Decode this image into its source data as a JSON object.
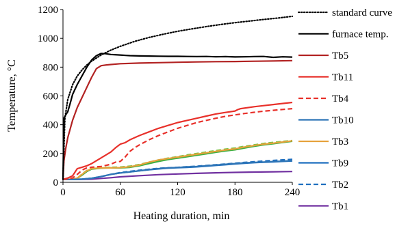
{
  "chart_data": {
    "type": "line",
    "xlabel": "Heating duration, min",
    "ylabel": "Temperature, °C",
    "xlim": [
      0,
      240
    ],
    "ylim": [
      0,
      1200
    ],
    "xticks": [
      0,
      60,
      120,
      180,
      240
    ],
    "yticks": [
      0,
      200,
      400,
      600,
      800,
      1000,
      1200
    ],
    "grid": false,
    "legend_position": "right",
    "series": [
      {
        "name": "standard curve",
        "color": "#000000",
        "style": "dotted",
        "x": [
          0,
          2,
          5,
          10,
          15,
          20,
          25,
          30,
          40,
          50,
          60,
          75,
          90,
          105,
          120,
          135,
          150,
          165,
          180,
          195,
          210,
          225,
          240
        ],
        "y": [
          20,
          445,
          576,
          678,
          739,
          781,
          815,
          842,
          885,
          918,
          945,
          979,
          1006,
          1029,
          1049,
          1066,
          1082,
          1096,
          1109,
          1120,
          1131,
          1141,
          1153
        ]
      },
      {
        "name": "furnace temp.",
        "color": "#000000",
        "style": "solid",
        "x": [
          0,
          1,
          3,
          5,
          8,
          10,
          15,
          20,
          25,
          30,
          35,
          40,
          45,
          50,
          60,
          70,
          80,
          90,
          100,
          110,
          120,
          130,
          140,
          150,
          160,
          170,
          180,
          190,
          200,
          210,
          220,
          230,
          240
        ],
        "y": [
          20,
          445,
          470,
          490,
          560,
          610,
          680,
          740,
          800,
          850,
          880,
          895,
          893,
          888,
          884,
          880,
          878,
          877,
          876,
          875,
          875,
          874,
          873,
          874,
          872,
          873,
          871,
          872,
          873,
          874,
          868,
          872,
          870
        ]
      },
      {
        "name": "Tb5",
        "color": "#b22222",
        "style": "solid",
        "x": [
          0,
          1,
          3,
          5,
          10,
          15,
          20,
          25,
          30,
          35,
          40,
          45,
          50,
          60,
          80,
          100,
          120,
          140,
          160,
          180,
          200,
          220,
          240
        ],
        "y": [
          20,
          150,
          240,
          310,
          430,
          520,
          590,
          660,
          730,
          790,
          810,
          815,
          818,
          824,
          828,
          831,
          834,
          836,
          838,
          839,
          841,
          843,
          845
        ]
      },
      {
        "name": "Tb11",
        "color": "#e8302a",
        "style": "solid",
        "x": [
          0,
          5,
          10,
          15,
          20,
          25,
          30,
          40,
          50,
          55,
          60,
          65,
          70,
          80,
          90,
          100,
          110,
          120,
          130,
          140,
          150,
          160,
          170,
          180,
          183,
          186,
          200,
          220,
          240
        ],
        "y": [
          20,
          30,
          45,
          95,
          105,
          115,
          130,
          170,
          210,
          240,
          265,
          275,
          295,
          325,
          350,
          375,
          395,
          415,
          430,
          445,
          460,
          475,
          485,
          495,
          505,
          512,
          525,
          540,
          555
        ]
      },
      {
        "name": "Tb4",
        "color": "#e8302a",
        "style": "dashed",
        "x": [
          0,
          5,
          10,
          15,
          20,
          25,
          30,
          40,
          50,
          55,
          60,
          65,
          70,
          75,
          80,
          90,
          100,
          110,
          120,
          130,
          140,
          150,
          160,
          170,
          180,
          190,
          200,
          210,
          220,
          230,
          240
        ],
        "y": [
          20,
          25,
          30,
          55,
          85,
          100,
          105,
          110,
          125,
          140,
          145,
          175,
          215,
          240,
          260,
          295,
          325,
          350,
          375,
          395,
          415,
          430,
          445,
          458,
          468,
          478,
          486,
          494,
          500,
          506,
          512
        ]
      },
      {
        "name": "Tb10",
        "color": "#2e75b6",
        "style": "solid",
        "x": [
          0,
          10,
          20,
          30,
          40,
          50,
          60,
          70,
          80,
          90,
          100,
          110,
          120,
          130,
          140,
          150,
          160,
          170,
          180,
          190,
          200,
          210,
          220,
          230,
          240
        ],
        "y": [
          20,
          20,
          22,
          28,
          40,
          55,
          65,
          72,
          80,
          88,
          95,
          100,
          103,
          107,
          110,
          115,
          120,
          125,
          130,
          135,
          138,
          141,
          144,
          147,
          150
        ]
      },
      {
        "name": "Tb3",
        "color": "#e6a23c",
        "style": "solid",
        "x": [
          0,
          10,
          15,
          20,
          25,
          30,
          40,
          50,
          60,
          70,
          80,
          90,
          100,
          110,
          120,
          130,
          140,
          150,
          160,
          170,
          180,
          190,
          200,
          210,
          220,
          230,
          240
        ],
        "y": [
          20,
          22,
          28,
          55,
          80,
          95,
          100,
          100,
          102,
          108,
          120,
          140,
          155,
          165,
          175,
          185,
          195,
          205,
          215,
          225,
          232,
          245,
          255,
          265,
          272,
          280,
          288
        ]
      },
      {
        "name": "Tb9",
        "color": "#1f6fbf",
        "style": "solid",
        "x": [
          0,
          10,
          20,
          30,
          40,
          50,
          60,
          70,
          80,
          90,
          100,
          110,
          120,
          130,
          140,
          150,
          160,
          170,
          180,
          190,
          200,
          210,
          220,
          230,
          240
        ],
        "y": [
          20,
          20,
          22,
          28,
          40,
          55,
          65,
          72,
          80,
          87,
          93,
          98,
          101,
          104,
          107,
          112,
          117,
          122,
          127,
          132,
          136,
          139,
          142,
          145,
          148
        ]
      },
      {
        "name": "Tb2",
        "color": "#1f6fbf",
        "style": "dashed",
        "x": [
          0,
          10,
          20,
          30,
          40,
          50,
          60,
          70,
          80,
          90,
          100,
          110,
          120,
          130,
          140,
          150,
          160,
          170,
          180,
          190,
          200,
          210,
          220,
          230,
          240
        ],
        "y": [
          20,
          20,
          22,
          28,
          40,
          55,
          68,
          76,
          84,
          91,
          97,
          101,
          104,
          108,
          112,
          117,
          122,
          127,
          133,
          138,
          143,
          148,
          152,
          156,
          160
        ]
      },
      {
        "name": "Tb1",
        "color": "#7030a0",
        "style": "solid",
        "x": [
          0,
          10,
          20,
          30,
          40,
          50,
          60,
          80,
          100,
          120,
          140,
          160,
          180,
          200,
          220,
          240
        ],
        "y": [
          20,
          20,
          20,
          22,
          27,
          32,
          38,
          46,
          53,
          58,
          62,
          66,
          69,
          71,
          73,
          75
        ]
      },
      {
        "name": "",
        "color": "#3cb043",
        "style": "solid",
        "x": [
          0,
          10,
          15,
          20,
          25,
          30,
          40,
          50,
          60,
          70,
          80,
          90,
          100,
          110,
          120,
          130,
          140,
          150,
          160,
          170,
          180,
          190,
          200,
          210,
          220,
          230,
          240
        ],
        "y": [
          20,
          22,
          28,
          50,
          75,
          92,
          98,
          100,
          100,
          104,
          115,
          130,
          145,
          158,
          168,
          178,
          188,
          198,
          208,
          218,
          226,
          238,
          250,
          260,
          268,
          277,
          285
        ]
      },
      {
        "name": "",
        "color": "#7bc043",
        "style": "dashed",
        "x": [
          0,
          10,
          15,
          20,
          25,
          30,
          40,
          50,
          60,
          70,
          80,
          90,
          100,
          110,
          120,
          130,
          140,
          150,
          160,
          170,
          180,
          190,
          200,
          210,
          220,
          230,
          240
        ],
        "y": [
          20,
          22,
          28,
          58,
          82,
          96,
          102,
          104,
          106,
          112,
          124,
          140,
          155,
          168,
          178,
          190,
          200,
          210,
          220,
          230,
          238,
          250,
          260,
          270,
          277,
          284,
          290
        ]
      }
    ]
  }
}
